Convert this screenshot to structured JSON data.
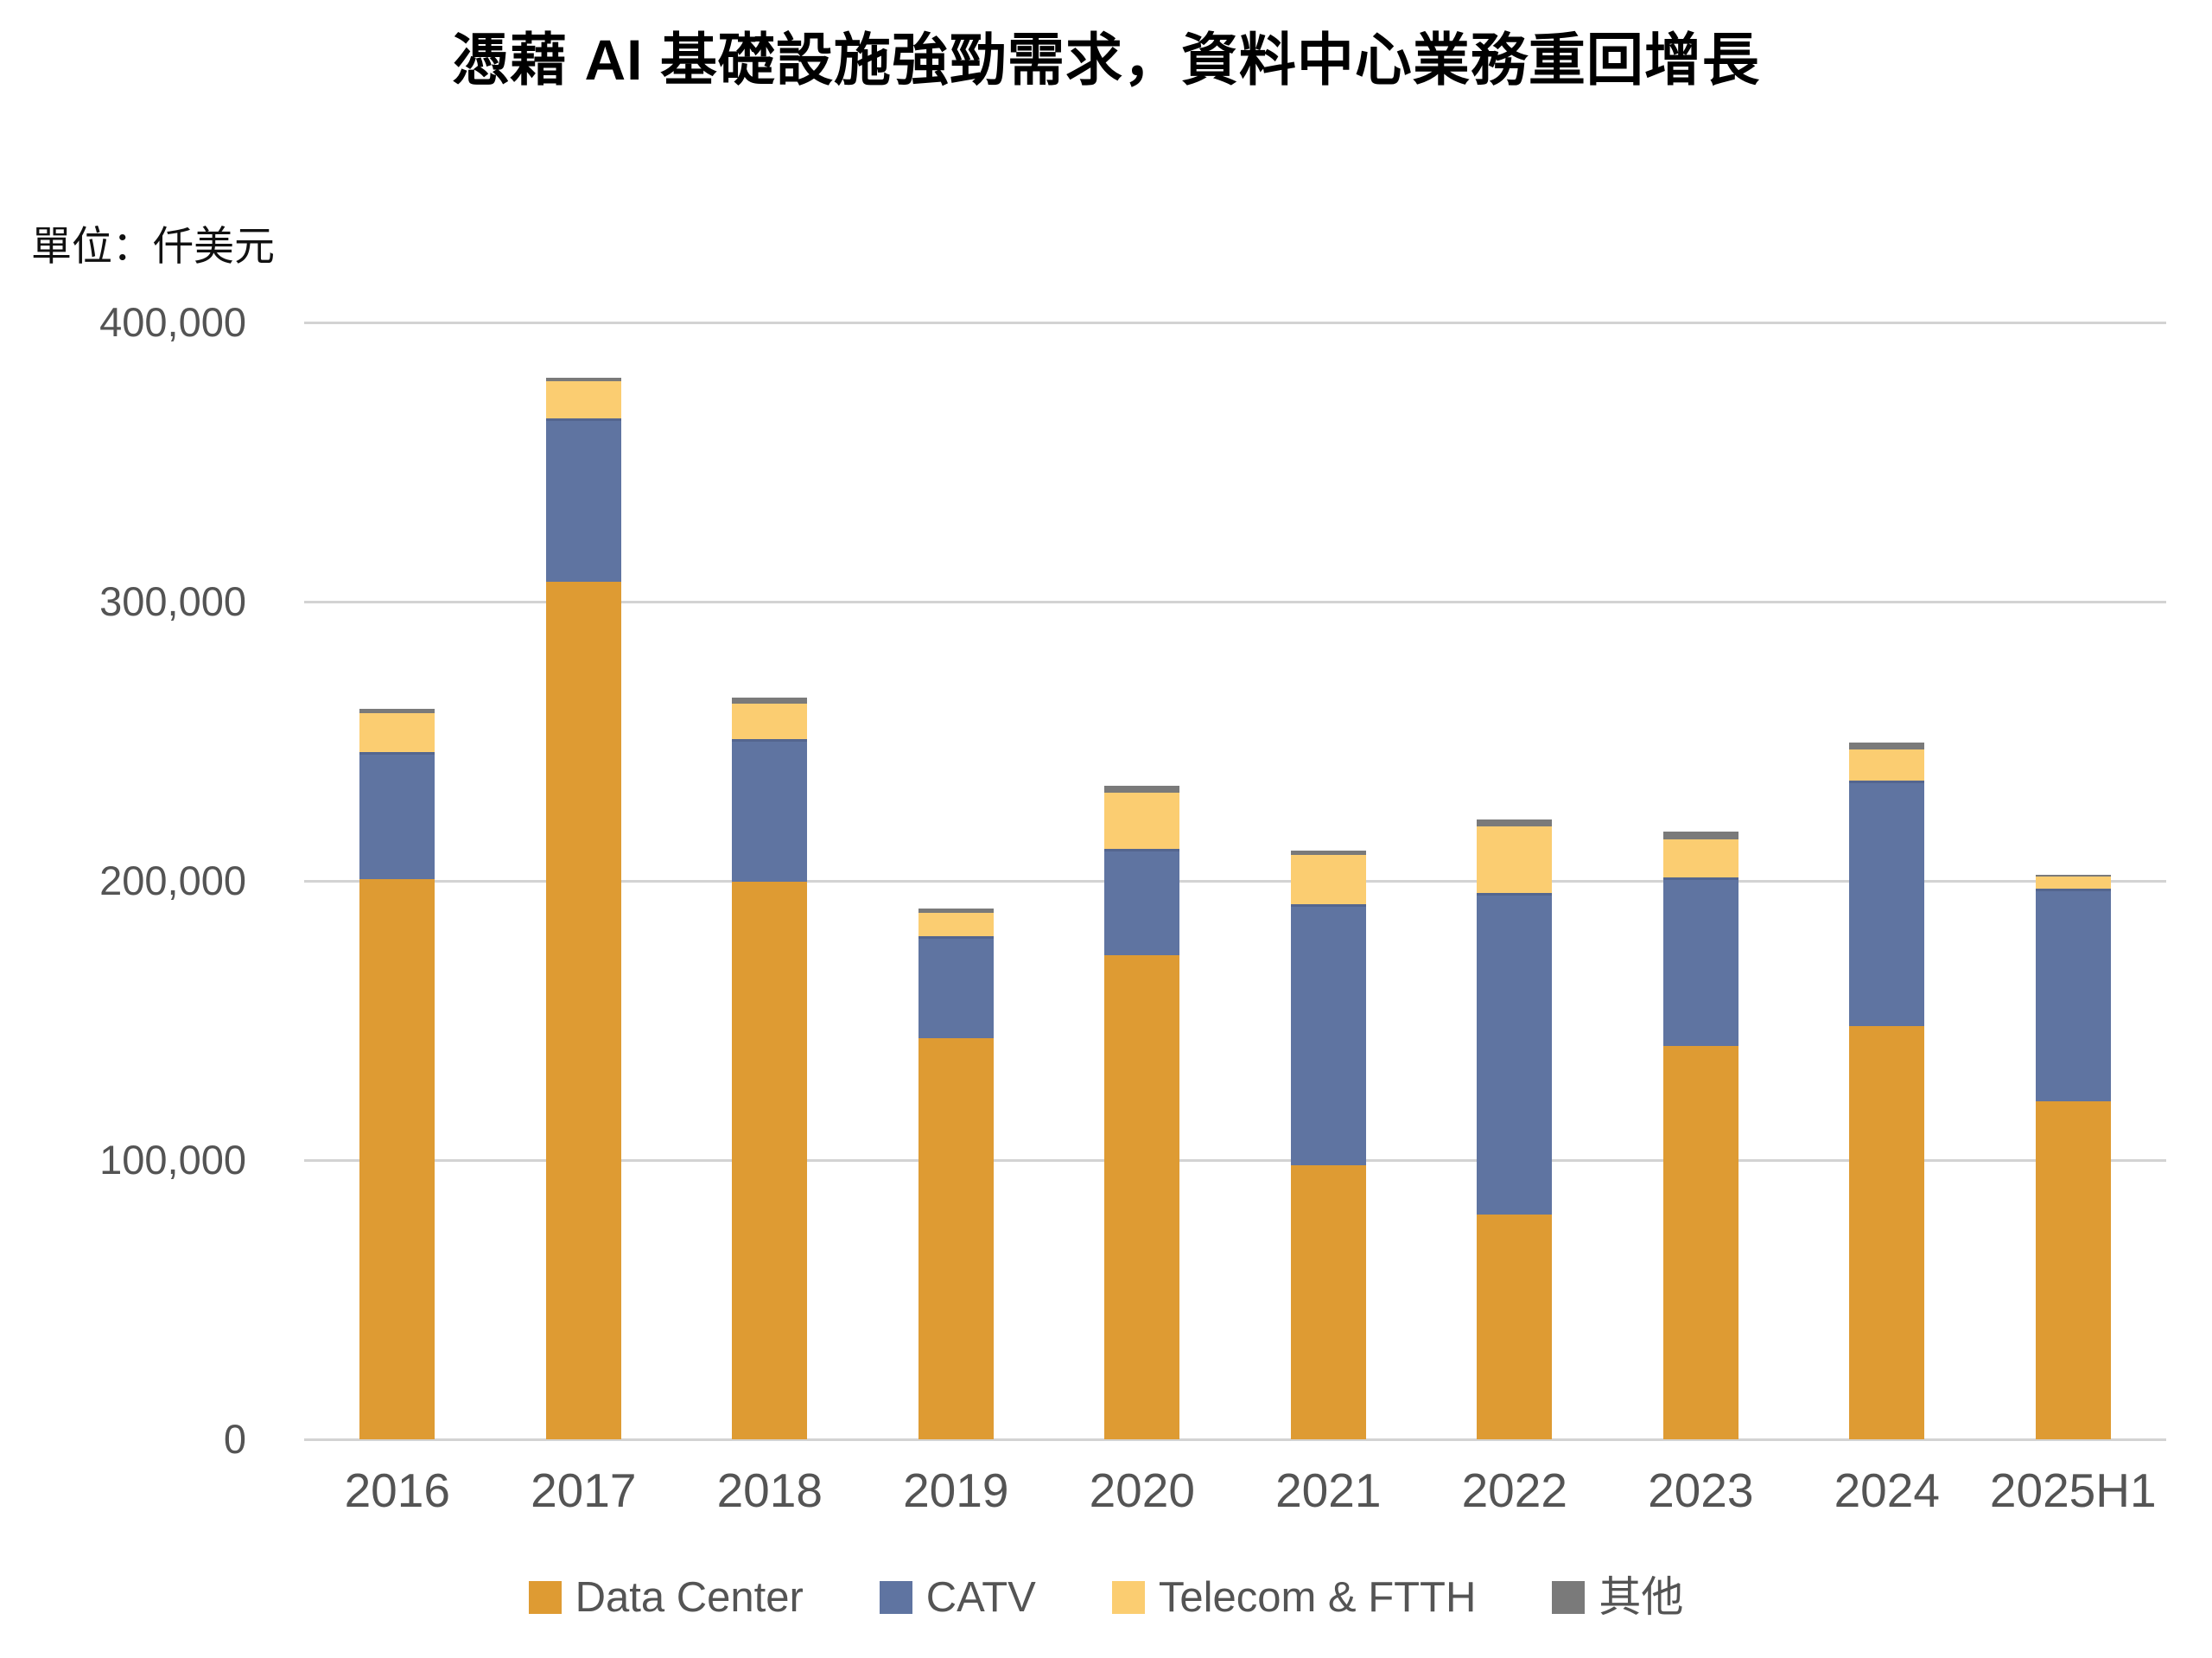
{
  "title": "憑藉 AI 基礎設施強勁需求，資料中心業務重回增長",
  "unit_label": "單位：仟美元",
  "chart_data": {
    "type": "bar",
    "stacked": true,
    "title": "憑藉 AI 基礎設施強勁需求，資料中心業務重回增長",
    "unit": "仟美元",
    "categories": [
      "2016",
      "2017",
      "2018",
      "2019",
      "2020",
      "2021",
      "2022",
      "2023",
      "2024",
      "2025H1"
    ],
    "series": [
      {
        "name": "Data Center",
        "color": "#DE9B33",
        "values": [
          200500,
          307000,
          199700,
          143600,
          173400,
          98100,
          80500,
          140900,
          148100,
          121200
        ]
      },
      {
        "name": "CATV",
        "color": "#5F74A1",
        "values": [
          45500,
          58500,
          51000,
          36700,
          38000,
          93400,
          115200,
          60300,
          87900,
          76100
        ]
      },
      {
        "name": "Telecom & FTTH",
        "color": "#FBCD71",
        "values": [
          14200,
          13500,
          12800,
          8300,
          20300,
          17800,
          23700,
          13800,
          11100,
          4200
        ]
      },
      {
        "name": "其他",
        "color": "#7A7A7A",
        "values": [
          1300,
          1300,
          2100,
          1500,
          2300,
          1600,
          2600,
          2500,
          2500,
          800
        ]
      }
    ],
    "y_axis": {
      "min": 0,
      "max": 400000,
      "tick_step": 100000,
      "tick_labels": [
        "0",
        "100,000",
        "200,000",
        "300,000",
        "400,000"
      ]
    },
    "x_axis_labels": [
      "2016",
      "2017",
      "2018",
      "2019",
      "2020",
      "2021",
      "2022",
      "2023",
      "2024",
      "2025H1"
    ],
    "legend_position": "bottom",
    "grid": true,
    "colors": {
      "grid_line": "#d3d3d3",
      "axis_text": "#545454",
      "title_text": "#000000"
    }
  }
}
